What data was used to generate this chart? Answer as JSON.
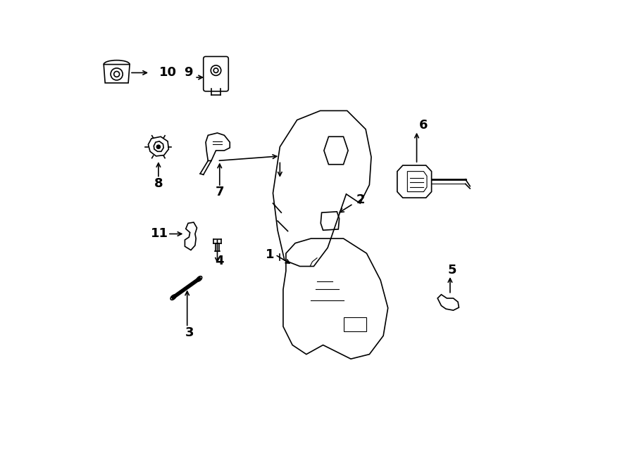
{
  "bg_color": "#ffffff",
  "line_color": "#000000",
  "label_color": "#000000",
  "fig_width": 9.0,
  "fig_height": 6.61,
  "dpi": 100
}
